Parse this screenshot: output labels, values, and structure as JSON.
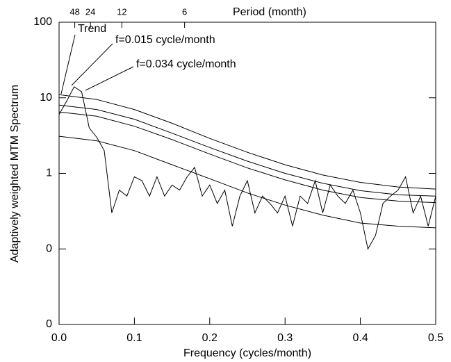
{
  "chart_data": {
    "type": "line",
    "ylabel": "Adaptively weighted MTM Spectrum",
    "xlabel": "Frequency (cycles/month)",
    "log_y": true,
    "ylim": [
      0.01,
      100
    ],
    "yticks": [
      {
        "value": 0.01,
        "label": "0"
      },
      {
        "value": 0.1,
        "label": "0"
      },
      1,
      10,
      100
    ],
    "xlim": [
      0,
      0.5
    ],
    "xticks": [
      {
        "value": 0,
        "label": "0.0"
      },
      0.1,
      0.2,
      0.3,
      0.4,
      0.5
    ],
    "top_axis": {
      "label": "Period (month)",
      "transform": "reciprocal",
      "ticks": [
        48,
        24,
        12,
        6
      ]
    },
    "annotations": [
      {
        "text": "Trend"
      },
      {
        "text": "f=0.015 cycle/month"
      },
      {
        "text": "f=0.034 cycle/month"
      }
    ],
    "series": [
      {
        "color": "#000000",
        "x": [
          0,
          0.01,
          0.02,
          0.03,
          0.04,
          0.05,
          0.06,
          0.07,
          0.08,
          0.09,
          0.1,
          0.11,
          0.12,
          0.13,
          0.14,
          0.15,
          0.16,
          0.17,
          0.18,
          0.19,
          0.2,
          0.21,
          0.22,
          0.23,
          0.24,
          0.25,
          0.26,
          0.27,
          0.28,
          0.29,
          0.3,
          0.31,
          0.32,
          0.33,
          0.34,
          0.35,
          0.36,
          0.37,
          0.38,
          0.39,
          0.4,
          0.41,
          0.42,
          0.43,
          0.44,
          0.45,
          0.46,
          0.47,
          0.48,
          0.49,
          0.5
        ],
        "values": [
          6,
          9,
          14,
          12,
          4,
          3,
          2,
          0.3,
          0.6,
          0.5,
          0.9,
          0.8,
          0.5,
          0.9,
          0.5,
          0.7,
          0.6,
          0.9,
          1.2,
          0.5,
          0.7,
          0.4,
          0.6,
          0.2,
          0.5,
          0.8,
          0.3,
          0.5,
          0.4,
          0.3,
          0.5,
          0.2,
          0.5,
          0.4,
          0.8,
          0.3,
          0.7,
          0.5,
          0.4,
          0.6,
          0.3,
          0.1,
          0.15,
          0.4,
          0.5,
          0.6,
          0.9,
          0.3,
          0.5,
          0.2,
          0.5
        ]
      },
      {
        "color": "#000000",
        "x": [
          0,
          0.05,
          0.1,
          0.15,
          0.2,
          0.25,
          0.3,
          0.35,
          0.4,
          0.45,
          0.5
        ],
        "values": [
          11,
          9.5,
          7,
          4.6,
          2.9,
          1.9,
          1.3,
          0.95,
          0.76,
          0.66,
          0.62
        ]
      },
      {
        "color": "#000000",
        "x": [
          0,
          0.05,
          0.1,
          0.15,
          0.2,
          0.25,
          0.3,
          0.35,
          0.4,
          0.45,
          0.5
        ],
        "values": [
          8,
          7,
          5.2,
          3.4,
          2.2,
          1.45,
          1.0,
          0.74,
          0.59,
          0.52,
          0.5
        ]
      },
      {
        "color": "#000000",
        "x": [
          0,
          0.05,
          0.1,
          0.15,
          0.2,
          0.25,
          0.3,
          0.35,
          0.4,
          0.45,
          0.5
        ],
        "values": [
          6.5,
          5.7,
          4.2,
          2.8,
          1.8,
          1.18,
          0.82,
          0.6,
          0.48,
          0.43,
          0.41
        ]
      },
      {
        "color": "#000000",
        "x": [
          0,
          0.05,
          0.1,
          0.15,
          0.2,
          0.25,
          0.3,
          0.35,
          0.4,
          0.45,
          0.5
        ],
        "values": [
          3.1,
          2.7,
          2.0,
          1.3,
          0.85,
          0.55,
          0.38,
          0.28,
          0.22,
          0.2,
          0.19
        ]
      }
    ]
  }
}
